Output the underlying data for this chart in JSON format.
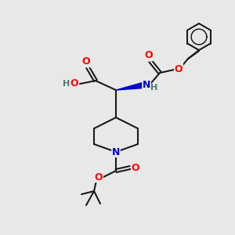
{
  "bg_color": "#e8e8e8",
  "bond_color": "#1a1a1a",
  "atom_colors": {
    "O": "#ff0000",
    "N": "#0000cc",
    "H": "#4a7a7a",
    "C": "#1a1a1a"
  },
  "figsize": [
    3.0,
    3.0
  ],
  "dpi": 100
}
